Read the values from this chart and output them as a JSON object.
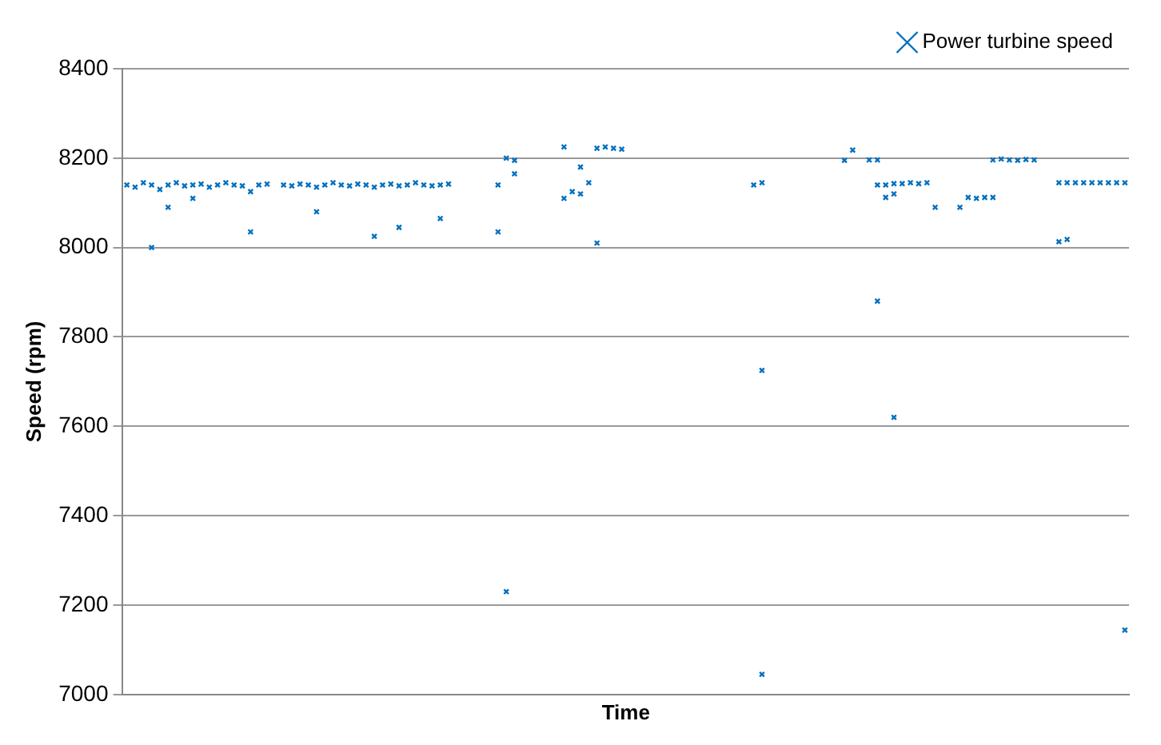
{
  "chart_data": {
    "type": "scatter",
    "xlabel": "Time",
    "ylabel": "Speed (rpm)",
    "categories": [
      null,
      null,
      null,
      null,
      null,
      null,
      null,
      null,
      null,
      null,
      null,
      null,
      null,
      null,
      null,
      null,
      null,
      null,
      null,
      null,
      null,
      null,
      null,
      null,
      null,
      null,
      null,
      null,
      null,
      null,
      null,
      null,
      null,
      null,
      null,
      null,
      null,
      null,
      null,
      null,
      null,
      null,
      null,
      null,
      null,
      null,
      null,
      null,
      null,
      null,
      null,
      null,
      null,
      null,
      null,
      null,
      null,
      null,
      null,
      null,
      null,
      null,
      null,
      null,
      null,
      null,
      null,
      null,
      null,
      null,
      null,
      null,
      null,
      null,
      null,
      null,
      null,
      null,
      null,
      null,
      null,
      null,
      null,
      null,
      null,
      null,
      null,
      null,
      null,
      null,
      null,
      null,
      null,
      null,
      null,
      null,
      null,
      null,
      null,
      null,
      null,
      null,
      null,
      null,
      null,
      null,
      null,
      null,
      null,
      null,
      null,
      null,
      null,
      null,
      null,
      null,
      null,
      null,
      null,
      null,
      null,
      null
    ],
    "series": [
      {
        "name": "Power turbine speed",
        "color": "#0070c0",
        "values": [
          8140,
          8135,
          8145,
          8140,
          8130,
          8140,
          8145,
          8138,
          8140,
          8142,
          8135,
          8140,
          8145,
          8140,
          8138,
          8125,
          8140,
          8142,
          null,
          8140,
          8138,
          8142,
          8140,
          8135,
          8140,
          8145,
          8140,
          8138,
          8142,
          8140,
          8135,
          8140,
          8142,
          8138,
          8140,
          8145,
          8140,
          8138,
          8140,
          8142,
          null,
          null,
          null,
          null,
          null,
          8140,
          8200,
          8195,
          null,
          null,
          null,
          null,
          null,
          8225,
          8125,
          8180,
          8145,
          8222,
          8225,
          8222,
          8220,
          null,
          null,
          null,
          null,
          null,
          null,
          null,
          null,
          null,
          null,
          null,
          null,
          null,
          null,
          null,
          8140,
          8145,
          null,
          null,
          null,
          null,
          null,
          null,
          null,
          null,
          null,
          8195,
          8218,
          null,
          8196,
          8140,
          8112,
          8143,
          8143,
          8145,
          8143,
          8145,
          8090,
          null,
          null,
          8090,
          8112,
          8110,
          8112,
          8196,
          8198,
          8196,
          8195,
          8197,
          8196,
          null,
          null,
          8145,
          8145,
          8145,
          8145,
          8145,
          8145,
          8145,
          8145,
          8145
        ]
      },
      {
        "color": "#0070c0",
        "values": [
          null,
          null,
          null,
          8000,
          null,
          8090,
          null,
          null,
          8110,
          null,
          null,
          null,
          null,
          null,
          null,
          8035,
          null,
          null,
          null,
          null,
          null,
          null,
          null,
          8080,
          null,
          null,
          null,
          null,
          null,
          null,
          8025,
          null,
          null,
          8045,
          null,
          null,
          null,
          null,
          8065,
          null,
          null,
          null,
          null,
          null,
          null,
          8035,
          7230,
          8165,
          null,
          null,
          null,
          null,
          null,
          8110,
          null,
          8120,
          null,
          8010,
          null,
          null,
          null,
          null,
          null,
          null,
          null,
          null,
          null,
          null,
          null,
          null,
          null,
          null,
          null,
          null,
          null,
          null,
          null,
          7725,
          null,
          null,
          null,
          null,
          null,
          null,
          null,
          null,
          null,
          null,
          null,
          null,
          null,
          7880,
          8140,
          7620,
          null,
          null,
          null,
          null,
          null,
          null,
          null,
          null,
          null,
          null,
          null,
          8112,
          null,
          null,
          null,
          null,
          null,
          null,
          null,
          8013,
          8018,
          null,
          null,
          null,
          null,
          null,
          null,
          7144
        ]
      },
      {
        "color": "#0070c0",
        "values": [
          null,
          null,
          null,
          null,
          null,
          null,
          null,
          null,
          null,
          null,
          null,
          null,
          null,
          null,
          null,
          null,
          null,
          null,
          null,
          null,
          null,
          null,
          null,
          null,
          null,
          null,
          null,
          null,
          null,
          null,
          null,
          null,
          null,
          null,
          null,
          null,
          null,
          null,
          null,
          null,
          null,
          null,
          null,
          null,
          null,
          null,
          null,
          null,
          null,
          null,
          null,
          null,
          null,
          null,
          null,
          null,
          null,
          null,
          null,
          null,
          null,
          null,
          null,
          null,
          null,
          null,
          null,
          null,
          null,
          null,
          null,
          null,
          null,
          null,
          null,
          null,
          null,
          7045,
          null,
          null,
          null,
          null,
          null,
          null,
          null,
          null,
          null,
          null,
          null,
          null,
          null,
          8196,
          null,
          8120,
          null,
          null,
          null,
          null,
          null,
          null,
          null,
          null,
          null,
          null,
          null,
          null,
          null,
          null,
          null,
          null,
          null,
          null,
          null,
          null,
          null,
          null,
          null,
          null,
          null,
          null,
          null,
          null
        ]
      }
    ],
    "ylim": [
      7000,
      8400
    ],
    "yticks": [
      7000,
      7200,
      7400,
      7600,
      7800,
      8000,
      8200,
      8400
    ],
    "grid": "y",
    "legend": "top right",
    "marker": "cross",
    "tick_labels": "y"
  }
}
